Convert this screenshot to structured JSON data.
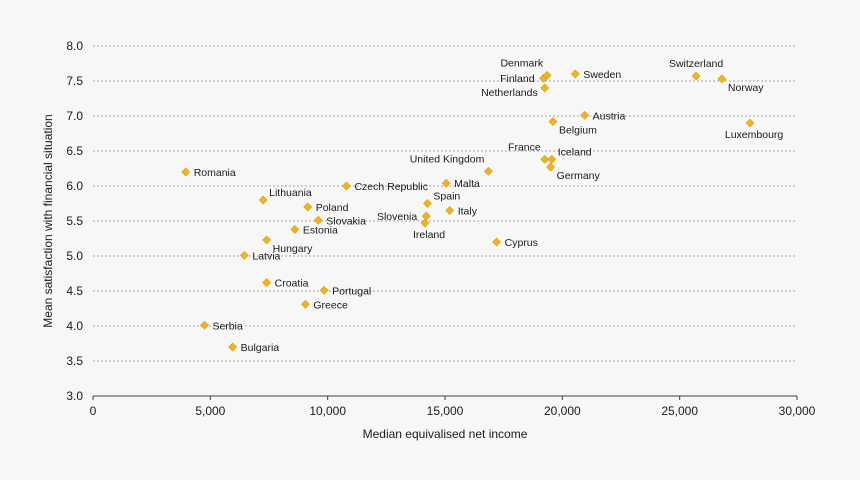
{
  "chart_data": {
    "type": "scatter",
    "title": "",
    "xlabel": "Median equivalised  net income",
    "ylabel": "Mean satisfaction with financial situation",
    "xlim": [
      0,
      30000
    ],
    "ylim": [
      3.0,
      8.0
    ],
    "x_ticks": [
      0,
      5000,
      10000,
      15000,
      20000,
      25000,
      30000
    ],
    "x_tick_labels": [
      "0",
      "5,000",
      "10,000",
      "15,000",
      "20,000",
      "25,000",
      "30,000"
    ],
    "y_ticks": [
      3.0,
      3.5,
      4.0,
      4.5,
      5.0,
      5.5,
      6.0,
      6.5,
      7.0,
      7.5,
      8.0
    ],
    "y_tick_labels": [
      "3.0",
      "3.5",
      "4.0",
      "4.5",
      "5.0",
      "5.5",
      "6.0",
      "6.5",
      "7.0",
      "7.5",
      "8.0"
    ],
    "grid": "horizontal dashed",
    "marker_color": "#f0b323",
    "points": [
      {
        "label": "Romania",
        "x": 3950,
        "y": 6.2,
        "side": "right"
      },
      {
        "label": "Serbia",
        "x": 4750,
        "y": 4.01,
        "side": "right"
      },
      {
        "label": "Bulgaria",
        "x": 5950,
        "y": 3.7,
        "side": "right"
      },
      {
        "label": "Latvia",
        "x": 6450,
        "y": 5.01,
        "side": "right"
      },
      {
        "label": "Lithuania",
        "x": 7250,
        "y": 5.8,
        "side": "right-up"
      },
      {
        "label": "Hungary",
        "x": 7400,
        "y": 5.23,
        "side": "right-down"
      },
      {
        "label": "Croatia",
        "x": 7400,
        "y": 4.62,
        "side": "right"
      },
      {
        "label": "Estonia",
        "x": 8600,
        "y": 5.38,
        "side": "right"
      },
      {
        "label": "Greece",
        "x": 9050,
        "y": 4.31,
        "side": "right"
      },
      {
        "label": "Poland",
        "x": 9150,
        "y": 5.7,
        "side": "right"
      },
      {
        "label": "Slovakia",
        "x": 9600,
        "y": 5.51,
        "side": "right"
      },
      {
        "label": "Portugal",
        "x": 9850,
        "y": 4.51,
        "side": "right"
      },
      {
        "label": "Czech Republic",
        "x": 10800,
        "y": 6.0,
        "side": "right"
      },
      {
        "label": "Slovenia",
        "x": 14200,
        "y": 5.57,
        "side": "left"
      },
      {
        "label": "Ireland",
        "x": 14150,
        "y": 5.47,
        "side": "below"
      },
      {
        "label": "Spain",
        "x": 14250,
        "y": 5.75,
        "side": "right-up"
      },
      {
        "label": "Malta",
        "x": 15050,
        "y": 6.04,
        "side": "right"
      },
      {
        "label": "Italy",
        "x": 15200,
        "y": 5.65,
        "side": "right"
      },
      {
        "label": "United Kingdom",
        "x": 16850,
        "y": 6.21,
        "side": "above-left"
      },
      {
        "label": "Cyprus",
        "x": 17200,
        "y": 5.2,
        "side": "right"
      },
      {
        "label": "France",
        "x": 19250,
        "y": 6.38,
        "side": "above-left"
      },
      {
        "label": "Iceland",
        "x": 19550,
        "y": 6.38,
        "side": "right-up"
      },
      {
        "label": "Germany",
        "x": 19500,
        "y": 6.27,
        "side": "right-down"
      },
      {
        "label": "Netherlands",
        "x": 19250,
        "y": 7.4,
        "side": "left-down"
      },
      {
        "label": "Finland",
        "x": 19200,
        "y": 7.54,
        "side": "left"
      },
      {
        "label": "Denmark",
        "x": 19350,
        "y": 7.58,
        "side": "above-left"
      },
      {
        "label": "Belgium",
        "x": 19600,
        "y": 6.92,
        "side": "right-down"
      },
      {
        "label": "Sweden",
        "x": 20550,
        "y": 7.6,
        "side": "right"
      },
      {
        "label": "Austria",
        "x": 20950,
        "y": 7.01,
        "side": "right"
      },
      {
        "label": "Switzerland",
        "x": 25700,
        "y": 7.57,
        "side": "above"
      },
      {
        "label": "Norway",
        "x": 26800,
        "y": 7.53,
        "side": "right-down"
      },
      {
        "label": "Luxembourg",
        "x": 28000,
        "y": 6.9,
        "side": "below"
      }
    ]
  }
}
